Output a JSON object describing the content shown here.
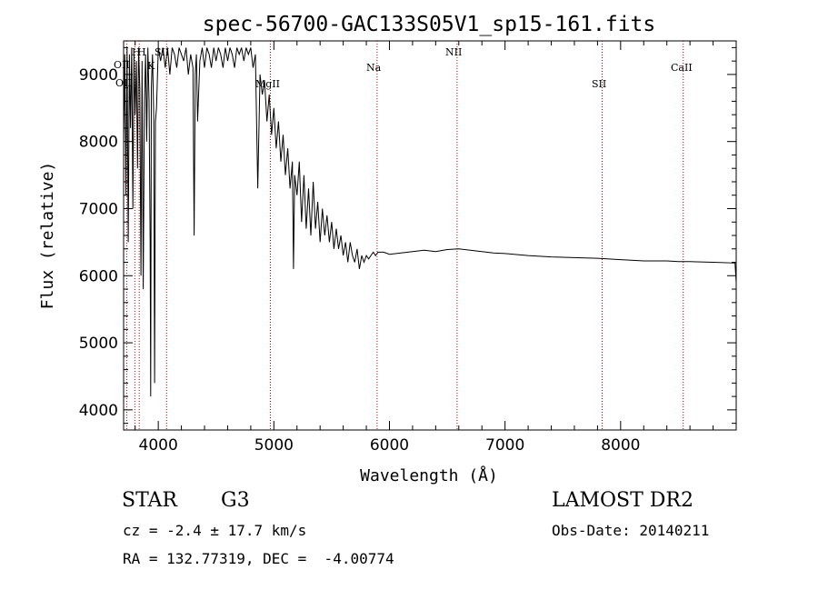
{
  "chart_data": {
    "type": "line",
    "title": "spec-56700-GAC133S05V1_sp15-161.fits",
    "xlabel": "Wavelength (Å)",
    "ylabel": "Flux (relative)",
    "xlim": [
      3700,
      9000
    ],
    "ylim": [
      3700,
      9500
    ],
    "xticks": [
      4000,
      5000,
      6000,
      7000,
      8000
    ],
    "yticks": [
      4000,
      5000,
      6000,
      7000,
      8000,
      9000
    ],
    "series": [
      {
        "x": [
          3700,
          3710,
          3720,
          3730,
          3740,
          3750,
          3760,
          3770,
          3780,
          3790,
          3800,
          3810,
          3820,
          3830,
          3840,
          3850,
          3860,
          3870,
          3880,
          3890,
          3900,
          3910,
          3920,
          3930,
          3934,
          3940,
          3950,
          3960,
          3968,
          3975,
          3985,
          4000,
          4020,
          4040,
          4060,
          4080,
          4100,
          4120,
          4140,
          4160,
          4180,
          4200,
          4220,
          4240,
          4260,
          4280,
          4300,
          4310,
          4320,
          4330,
          4340,
          4360,
          4380,
          4400,
          4420,
          4440,
          4460,
          4480,
          4500,
          4520,
          4540,
          4560,
          4580,
          4600,
          4620,
          4640,
          4660,
          4680,
          4700,
          4720,
          4740,
          4760,
          4780,
          4800,
          4820,
          4840,
          4861,
          4880,
          4900,
          4920,
          4940,
          4960,
          4980,
          5000,
          5020,
          5040,
          5060,
          5080,
          5100,
          5120,
          5140,
          5160,
          5170,
          5180,
          5200,
          5220,
          5240,
          5260,
          5280,
          5300,
          5320,
          5340,
          5360,
          5380,
          5400,
          5420,
          5440,
          5460,
          5480,
          5500,
          5520,
          5540,
          5560,
          5580,
          5600,
          5620,
          5640,
          5660,
          5680,
          5700,
          5720,
          5740,
          5760,
          5780,
          5800,
          5820,
          5840,
          5860,
          5880,
          5900,
          5950,
          6000,
          6100,
          6200,
          6300,
          6400,
          6500,
          6600,
          6700,
          6800,
          6900,
          7000,
          7200,
          7400,
          7600,
          7800,
          8000,
          8200,
          8400,
          8500,
          8600,
          8800,
          8990,
          9000
        ],
        "y": [
          8000,
          9300,
          7200,
          9400,
          6500,
          9300,
          8200,
          9400,
          7000,
          9300,
          8400,
          9200,
          7600,
          9400,
          8800,
          6000,
          9200,
          5800,
          8600,
          9300,
          8000,
          9400,
          8600,
          6500,
          4200,
          8800,
          9300,
          8400,
          4400,
          8300,
          8500,
          9400,
          9200,
          9400,
          9100,
          9400,
          9000,
          9400,
          9300,
          9100,
          9400,
          9300,
          9200,
          9400,
          9000,
          9300,
          9100,
          6600,
          9000,
          9300,
          8300,
          9200,
          9400,
          9100,
          9400,
          9300,
          9100,
          9400,
          9200,
          9400,
          9300,
          9100,
          9400,
          9200,
          9400,
          9300,
          9100,
          9400,
          9300,
          9400,
          9200,
          9400,
          9300,
          9400,
          9100,
          9300,
          7300,
          9000,
          8700,
          8900,
          8300,
          8700,
          8100,
          8500,
          7900,
          8300,
          7700,
          8100,
          7500,
          7900,
          7300,
          7700,
          6100,
          7500,
          7200,
          7700,
          6800,
          7500,
          6700,
          7300,
          6600,
          7400,
          6700,
          7100,
          6500,
          7000,
          6600,
          6900,
          6500,
          6800,
          6400,
          6700,
          6400,
          6600,
          6300,
          6500,
          6200,
          6500,
          6300,
          6200,
          6400,
          6100,
          6300,
          6200,
          6300,
          6250,
          6300,
          6350,
          6300,
          6350,
          6350,
          6320,
          6340,
          6360,
          6380,
          6360,
          6390,
          6400,
          6380,
          6360,
          6340,
          6330,
          6300,
          6280,
          6270,
          6260,
          6240,
          6220,
          6220,
          6210,
          6210,
          6200,
          6190,
          5900
        ]
      }
    ],
    "lines": [
      {
        "label": "OII",
        "x": 3727
      },
      {
        "label": "Hθ",
        "x": 3797
      },
      {
        "label": "Hη",
        "x": 3835
      },
      {
        "label": "SII",
        "x": 4072
      },
      {
        "label": "NII",
        "x": 6585
      },
      {
        "label": "SII",
        "x": 7840
      },
      {
        "label": "CaII",
        "x": 8542
      },
      {
        "label": "Na",
        "x": 5893
      },
      {
        "label": "MgII",
        "x": 4970
      }
    ],
    "label_texts": {
      "oii_top": "OII",
      "oii_bottom": "OII",
      "hbeta": "H",
      "hk": "H",
      "k": "K",
      "sii_left": "SII",
      "na": "Na",
      "nii": "NII",
      "mgi": "MgII",
      "sii": "SII",
      "caii": "CaII"
    }
  },
  "footer": {
    "object_class": "STAR",
    "subclass": "G3",
    "survey": "LAMOST DR2",
    "redshift": "cz = -2.4 ± 17.7 km/s",
    "obs_date": "Obs-Date: 20140211",
    "coords": "RA = 132.77319, DEC =  -4.00774"
  }
}
